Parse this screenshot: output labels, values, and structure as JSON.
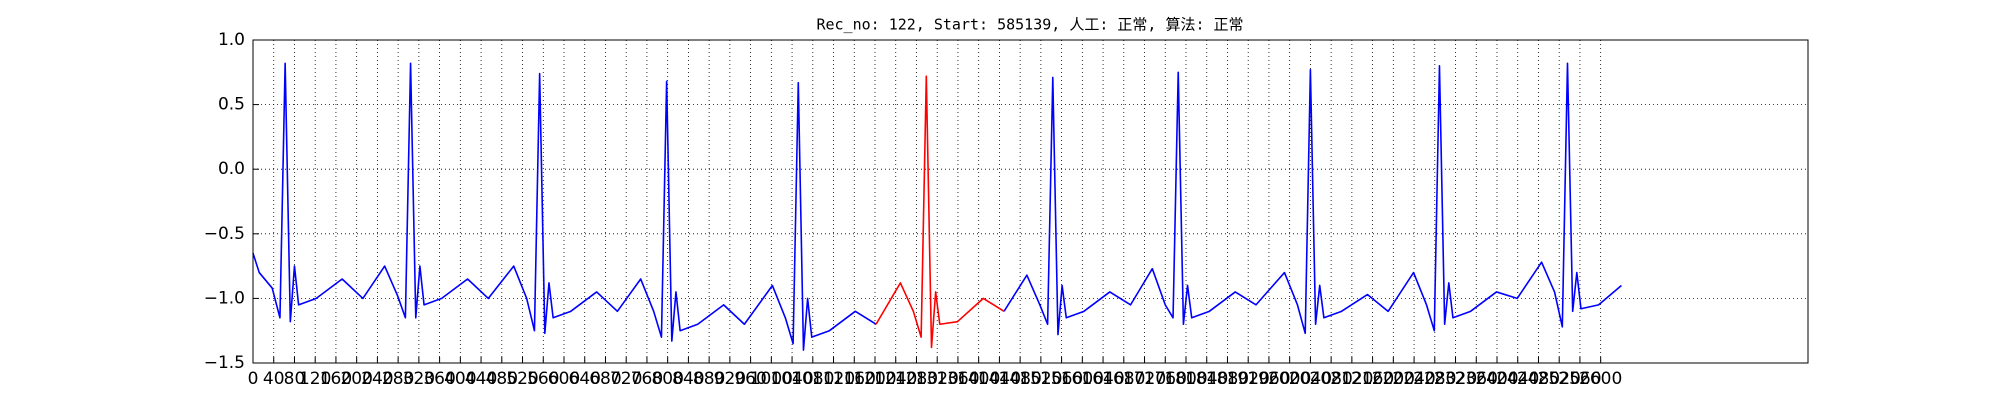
{
  "chart_data": {
    "type": "line",
    "title": "Rec_no: 122, Start: 585139, 人工: 正常, 算法: 正常",
    "x": [
      0,
      12,
      37,
      52,
      62,
      72,
      80,
      88,
      122,
      172,
      212,
      254,
      279,
      294,
      304,
      314,
      322,
      330,
      364,
      414,
      454,
      503,
      528,
      543,
      553,
      563,
      571,
      579,
      613,
      663,
      703,
      748,
      773,
      788,
      798,
      808,
      816,
      824,
      858,
      908,
      948,
      1002,
      1027,
      1042,
      1052,
      1062,
      1070,
      1078,
      1112,
      1162,
      1202,
      1249,
      1274,
      1289,
      1299,
      1309,
      1317,
      1325,
      1359,
      1409,
      1449,
      1493,
      1518,
      1533,
      1543,
      1553,
      1561,
      1569,
      1603,
      1653,
      1693,
      1735,
      1760,
      1775,
      1785,
      1795,
      1803,
      1811,
      1845,
      1895,
      1935,
      1990,
      2015,
      2030,
      2040,
      2050,
      2058,
      2066,
      2100,
      2150,
      2190,
      2239,
      2264,
      2279,
      2289,
      2299,
      2307,
      2315,
      2349,
      2399,
      2439,
      2486,
      2511,
      2526,
      2536,
      2546,
      2554,
      2562,
      2596,
      2640
    ],
    "series": [
      {
        "color": "#0000ff",
        "values": [
          -0.65,
          -0.8,
          -0.92,
          -1.15,
          0.82,
          -1.18,
          -0.75,
          -1.05,
          -1.0,
          -0.85,
          -1.0,
          -0.75,
          -0.98,
          -1.15,
          0.82,
          -1.15,
          -0.75,
          -1.05,
          -1.0,
          -0.85,
          -1.0,
          -0.75,
          -1.0,
          -1.25,
          0.74,
          -1.27,
          -0.88,
          -1.15,
          -1.1,
          -0.95,
          -1.1,
          -0.85,
          -1.1,
          -1.3,
          0.68,
          -1.33,
          -0.95,
          -1.25,
          -1.2,
          -1.05,
          -1.2,
          -0.9,
          -1.15,
          -1.35,
          0.67,
          -1.4,
          -1.0,
          -1.3,
          -1.25,
          -1.1,
          -1.2,
          null,
          null,
          null,
          null,
          null,
          null,
          null,
          null,
          null,
          -1.1,
          -0.82,
          -1.05,
          -1.2,
          0.71,
          -1.28,
          -0.9,
          -1.15,
          -1.1,
          -0.95,
          -1.05,
          -0.77,
          -1.05,
          -1.15,
          0.75,
          -1.2,
          -0.9,
          -1.15,
          -1.1,
          -0.95,
          -1.05,
          -0.8,
          -1.05,
          -1.27,
          0.77,
          -1.2,
          -0.9,
          -1.15,
          -1.1,
          -0.97,
          -1.1,
          -0.8,
          -1.05,
          -1.25,
          0.8,
          -1.2,
          -0.88,
          -1.15,
          -1.1,
          -0.95,
          -1.0,
          -0.72,
          -0.95,
          -1.22,
          0.82,
          -1.1,
          -0.8,
          -1.08,
          -1.05,
          -0.9
        ]
      },
      {
        "color": "#ff0000",
        "values": [
          null,
          null,
          null,
          null,
          null,
          null,
          null,
          null,
          null,
          null,
          null,
          null,
          null,
          null,
          null,
          null,
          null,
          null,
          null,
          null,
          null,
          null,
          null,
          null,
          null,
          null,
          null,
          null,
          null,
          null,
          null,
          null,
          null,
          null,
          null,
          null,
          null,
          null,
          null,
          null,
          null,
          null,
          null,
          null,
          null,
          null,
          null,
          null,
          null,
          null,
          -1.2,
          -0.88,
          -1.1,
          -1.3,
          0.72,
          -1.38,
          -0.95,
          -1.2,
          -1.18,
          -1.0,
          -1.1,
          null,
          null,
          null,
          null,
          null,
          null,
          null,
          null,
          null,
          null,
          null,
          null,
          null,
          null,
          null,
          null,
          null,
          null,
          null,
          null,
          null,
          null,
          null,
          null,
          null,
          null,
          null,
          null,
          null,
          null,
          null,
          null,
          null,
          null,
          null,
          null,
          null,
          null,
          null,
          null,
          null,
          null,
          null,
          null,
          null,
          null,
          null,
          null,
          null
        ]
      }
    ],
    "xlim": [
      0,
      3000
    ],
    "xticks": [
      0,
      40,
      80,
      120,
      160,
      200,
      240,
      280,
      320,
      360,
      400,
      440,
      480,
      520,
      560,
      600,
      640,
      680,
      720,
      760,
      800,
      840,
      880,
      920,
      960,
      1000,
      1040,
      1080,
      1120,
      1160,
      1200,
      1240,
      1280,
      1320,
      1360,
      1400,
      1440,
      1480,
      1520,
      1560,
      1600,
      1640,
      1680,
      1720,
      1760,
      1800,
      1840,
      1880,
      1920,
      1960,
      2000,
      2040,
      2080,
      2120,
      2160,
      2200,
      2240,
      2280,
      2320,
      2360,
      2400,
      2440,
      2480,
      2520,
      2560,
      2600
    ],
    "ylim": [
      -1.5,
      1.0
    ],
    "yticks": [
      {
        "value": -1.5,
        "label": "−1.5"
      },
      {
        "value": -1.0,
        "label": "−1.0"
      },
      {
        "value": -0.5,
        "label": "−0.5"
      },
      {
        "value": 0.0,
        "label": "0.0"
      },
      {
        "value": 0.5,
        "label": "0.5"
      },
      {
        "value": 1.0,
        "label": "1.0"
      }
    ],
    "grid": true
  }
}
